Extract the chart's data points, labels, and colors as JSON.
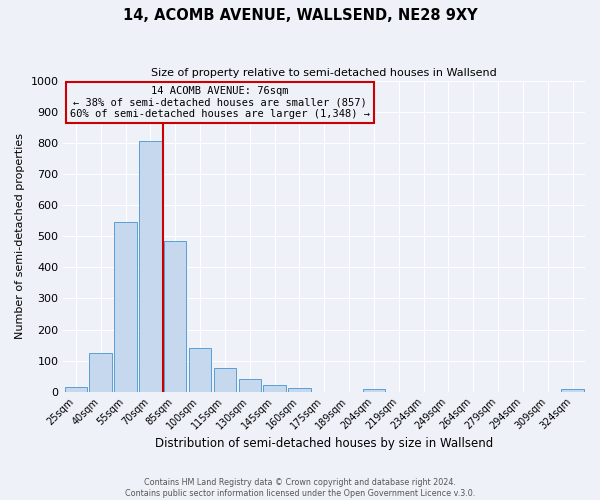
{
  "title": "14, ACOMB AVENUE, WALLSEND, NE28 9XY",
  "subtitle": "Size of property relative to semi-detached houses in Wallsend",
  "xlabel": "Distribution of semi-detached houses by size in Wallsend",
  "ylabel": "Number of semi-detached properties",
  "bar_labels": [
    "25sqm",
    "40sqm",
    "55sqm",
    "70sqm",
    "85sqm",
    "100sqm",
    "115sqm",
    "130sqm",
    "145sqm",
    "160sqm",
    "175sqm",
    "189sqm",
    "204sqm",
    "219sqm",
    "234sqm",
    "249sqm",
    "264sqm",
    "279sqm",
    "294sqm",
    "309sqm",
    "324sqm"
  ],
  "bar_values": [
    15,
    125,
    545,
    808,
    485,
    140,
    75,
    40,
    20,
    13,
    0,
    0,
    10,
    0,
    0,
    0,
    0,
    0,
    0,
    0,
    8
  ],
  "bar_color": "#c5d8ed",
  "bar_edge_color": "#5a9fd4",
  "ylim": [
    0,
    1000
  ],
  "yticks": [
    0,
    100,
    200,
    300,
    400,
    500,
    600,
    700,
    800,
    900,
    1000
  ],
  "property_label": "14 ACOMB AVENUE: 76sqm",
  "pct_smaller": 38,
  "pct_larger": 60,
  "n_smaller": 857,
  "n_larger": 1348,
  "vline_color": "#cc0000",
  "annotation_box_color": "#cc0000",
  "footer1": "Contains HM Land Registry data © Crown copyright and database right 2024.",
  "footer2": "Contains public sector information licensed under the Open Government Licence v.3.0.",
  "bg_color": "#eef2f8",
  "grid_color": "#ffffff"
}
